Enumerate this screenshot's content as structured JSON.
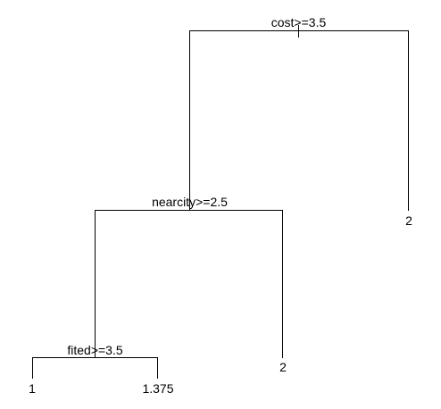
{
  "tree": {
    "root": {
      "split_label": "cost>=3.5",
      "left": {
        "split_label": "nearcity>=2.5",
        "left": {
          "split_label": "fited>=3.5",
          "left": {
            "leaf_value": "1"
          },
          "right": {
            "leaf_value": "1.375"
          }
        },
        "right": {
          "leaf_value": "2"
        }
      },
      "right": {
        "leaf_value": "2"
      }
    }
  }
}
